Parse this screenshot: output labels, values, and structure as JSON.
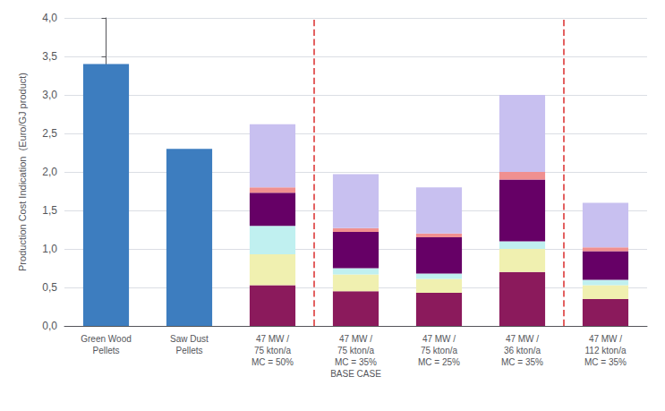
{
  "chart_data": {
    "type": "bar",
    "stacked": true,
    "grid": true,
    "ylabel": "Production Cost Indication  (Euro/GJ product)",
    "categories": [
      "Green Wood\nPellets",
      "Saw Dust\nPellets",
      "47 MW /\n75 kton/a\nMC = 50%",
      "47 MW /\n75 kton/a\nMC = 35%\nBASE CASE",
      "47 MW /\n75 kton/a\nMC = 25%",
      "47 MW /\n36 kton/a\nMC = 35%",
      "47 MW /\n112 kton/a\nMC = 35%"
    ],
    "series": [
      {
        "color": "#3d7dbf",
        "values": [
          3.4,
          2.3,
          null,
          null,
          null,
          null,
          null
        ]
      },
      {
        "color": "#8b1a5c",
        "values": [
          null,
          null,
          0.53,
          0.45,
          0.43,
          0.7,
          0.35
        ]
      },
      {
        "color": "#f0f0b0",
        "values": [
          null,
          null,
          0.4,
          0.22,
          0.18,
          0.3,
          0.18
        ]
      },
      {
        "color": "#c0f0f0",
        "values": [
          null,
          null,
          0.37,
          0.08,
          0.07,
          0.1,
          0.07
        ]
      },
      {
        "color": "#660066",
        "values": [
          null,
          null,
          0.43,
          0.47,
          0.47,
          0.8,
          0.37
        ]
      },
      {
        "color": "#f09090",
        "values": [
          null,
          null,
          0.07,
          0.05,
          0.05,
          0.1,
          0.05
        ]
      },
      {
        "color": "#c8c0f0",
        "values": [
          null,
          null,
          0.82,
          0.7,
          0.6,
          1.0,
          0.58
        ]
      }
    ],
    "vlines": [
      {
        "x": 2.5,
        "color": "#e05050",
        "line_style": "dashed"
      },
      {
        "x": 5.5,
        "color": "#e05050",
        "line_style": "dashed"
      }
    ],
    "ylim": [
      0,
      4.0
    ],
    "yticks": [
      {
        "value": 0.0,
        "label": "0,0"
      },
      {
        "value": 0.5,
        "label": "0,5"
      },
      {
        "value": 1.0,
        "label": "1,0"
      },
      {
        "value": 1.5,
        "label": "1,5"
      },
      {
        "value": 2.0,
        "label": "2,0"
      },
      {
        "value": 2.5,
        "label": "2,5"
      },
      {
        "value": 3.0,
        "label": "3,0"
      },
      {
        "value": 3.5,
        "label": "3,5"
      },
      {
        "value": 4.0,
        "label": "4,0"
      }
    ]
  }
}
